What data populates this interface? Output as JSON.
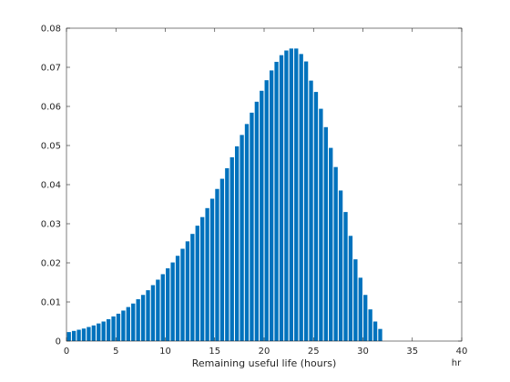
{
  "chart_data": {
    "type": "bar",
    "title": "",
    "xlabel": "Remaining useful life (hours)",
    "xunit": "hr",
    "ylabel": "",
    "xlim": [
      0,
      40
    ],
    "ylim": [
      0,
      0.08
    ],
    "xticks": [
      0,
      5,
      10,
      15,
      20,
      25,
      30,
      35,
      40
    ],
    "yticks": [
      0,
      0.01,
      0.02,
      0.03,
      0.04,
      0.05,
      0.06,
      0.07,
      0.08
    ],
    "bar_width": 0.4,
    "grid": false,
    "bar_color": "#0072BD",
    "x": [
      0.25,
      0.75,
      1.25,
      1.75,
      2.25,
      2.75,
      3.25,
      3.75,
      4.25,
      4.75,
      5.25,
      5.75,
      6.25,
      6.75,
      7.25,
      7.75,
      8.25,
      8.75,
      9.25,
      9.75,
      10.25,
      10.75,
      11.25,
      11.75,
      12.25,
      12.75,
      13.25,
      13.75,
      14.25,
      14.75,
      15.25,
      15.75,
      16.25,
      16.75,
      17.25,
      17.75,
      18.25,
      18.75,
      19.25,
      19.75,
      20.25,
      20.75,
      21.25,
      21.75,
      22.25,
      22.75,
      23.25,
      23.75,
      24.25,
      24.75,
      25.25,
      25.75,
      26.25,
      26.75,
      27.25,
      27.75,
      28.25,
      28.75,
      29.25,
      29.75,
      30.25,
      30.75,
      31.25,
      31.75
    ],
    "values": [
      0.0023,
      0.0026,
      0.0029,
      0.0032,
      0.0036,
      0.004,
      0.0045,
      0.005,
      0.0056,
      0.0063,
      0.007,
      0.0078,
      0.0087,
      0.0096,
      0.0107,
      0.0118,
      0.013,
      0.0143,
      0.0157,
      0.0171,
      0.0186,
      0.0201,
      0.0218,
      0.0236,
      0.0255,
      0.0274,
      0.0295,
      0.0317,
      0.034,
      0.0364,
      0.0389,
      0.0415,
      0.0442,
      0.047,
      0.0498,
      0.0527,
      0.0555,
      0.0584,
      0.0612,
      0.064,
      0.0667,
      0.0692,
      0.0714,
      0.0731,
      0.0743,
      0.0748,
      0.0748,
      0.0734,
      0.0715,
      0.0666,
      0.0637,
      0.0594,
      0.0547,
      0.0494,
      0.0445,
      0.0385,
      0.033,
      0.0269,
      0.0209,
      0.0162,
      0.0118,
      0.0081,
      0.005,
      0.0031
    ]
  }
}
